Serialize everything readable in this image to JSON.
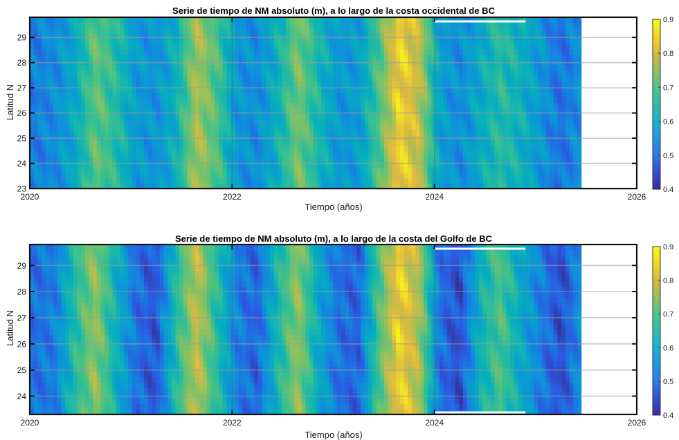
{
  "chart_data": [
    {
      "type": "heatmap",
      "title": "Serie de tiempo de NM absoluto (m), a lo largo de la costa occidental de BC",
      "xlabel": "Tiempo (años)",
      "ylabel": "Latitud N",
      "xlim": [
        2020,
        2026
      ],
      "ylim": [
        23,
        29.8
      ],
      "x_ticks": [
        "2020",
        "2022",
        "2024",
        "2026"
      ],
      "y_ticks": [
        "23",
        "24",
        "25",
        "26",
        "27",
        "28",
        "29"
      ],
      "grid": true,
      "colormap": "parula",
      "clim": [
        0.4,
        0.9
      ],
      "colorbar_ticks": [
        "0.4",
        "0.5",
        "0.6",
        "0.7",
        "0.8",
        "0.9"
      ],
      "data_end_year": 2025.45,
      "data_gap": [
        2024.0,
        2024.9
      ],
      "x": [
        2020.05,
        2020.25,
        2020.45,
        2020.65,
        2020.85,
        2021.05,
        2021.25,
        2021.45,
        2021.65,
        2021.85,
        2022.05,
        2022.25,
        2022.45,
        2022.65,
        2022.85,
        2023.05,
        2023.25,
        2023.45,
        2023.65,
        2023.85,
        2024.05,
        2024.25,
        2024.45,
        2024.65,
        2024.85,
        2025.05,
        2025.25,
        2025.45
      ],
      "y": [
        23.2,
        24.0,
        25.0,
        26.0,
        27.0,
        28.0,
        29.0,
        29.7
      ],
      "z_profile": [
        0.52,
        0.54,
        0.6,
        0.72,
        0.66,
        0.57,
        0.55,
        0.62,
        0.78,
        0.7,
        0.56,
        0.54,
        0.62,
        0.74,
        0.64,
        0.56,
        0.57,
        0.7,
        0.86,
        0.8,
        0.58,
        0.54,
        0.6,
        0.66,
        0.62,
        0.56,
        0.5,
        0.55
      ]
    },
    {
      "type": "heatmap",
      "title": "Serie de tiempo de NM absoluto (m), a lo largo de la costa del Golfo de BC",
      "xlabel": "Tiempo (años)",
      "ylabel": "Latitud N",
      "xlim": [
        2020,
        2026
      ],
      "ylim": [
        23.3,
        29.8
      ],
      "x_ticks": [
        "2020",
        "2022",
        "2024",
        "2026"
      ],
      "y_ticks": [
        "24",
        "25",
        "26",
        "27",
        "28",
        "29"
      ],
      "grid": true,
      "colormap": "parula",
      "clim": [
        0.4,
        0.9
      ],
      "colorbar_ticks": [
        "0.4",
        "0.5",
        "0.6",
        "0.7",
        "0.8",
        "0.9"
      ],
      "data_end_year": 2025.45,
      "data_gap": [
        2024.0,
        2024.9
      ],
      "x": [
        2020.05,
        2020.25,
        2020.45,
        2020.65,
        2020.85,
        2021.05,
        2021.25,
        2021.45,
        2021.65,
        2021.85,
        2022.05,
        2022.25,
        2022.45,
        2022.65,
        2022.85,
        2023.05,
        2023.25,
        2023.45,
        2023.65,
        2023.85,
        2024.05,
        2024.25,
        2024.45,
        2024.65,
        2024.85,
        2025.05,
        2025.25,
        2025.45
      ],
      "y": [
        23.4,
        24.0,
        25.0,
        26.0,
        27.0,
        28.0,
        29.0,
        29.7
      ],
      "z_profile": [
        0.5,
        0.52,
        0.66,
        0.76,
        0.62,
        0.5,
        0.46,
        0.66,
        0.8,
        0.66,
        0.52,
        0.48,
        0.64,
        0.76,
        0.6,
        0.5,
        0.48,
        0.7,
        0.86,
        0.78,
        0.5,
        0.45,
        0.62,
        0.7,
        0.6,
        0.52,
        0.45,
        0.55
      ]
    }
  ]
}
